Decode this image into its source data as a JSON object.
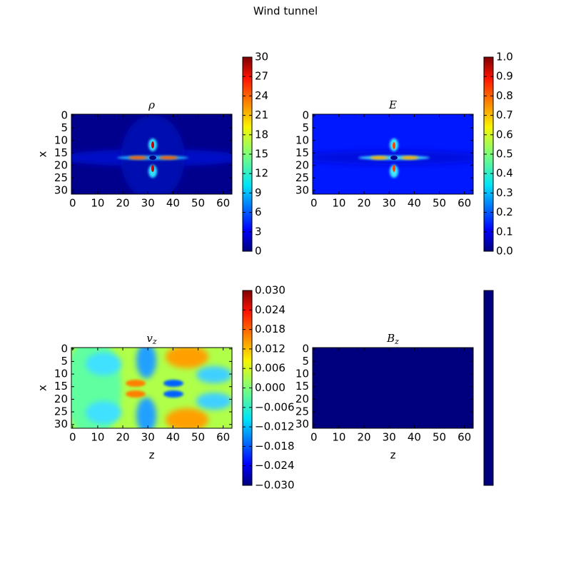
{
  "title": "Wind tunnel",
  "chart_data": [
    {
      "type": "heatmap",
      "title": "ρ",
      "xlim": [
        -0.5,
        63.5
      ],
      "ylim": [
        31.5,
        -0.5
      ],
      "xticks": [
        0,
        10,
        20,
        30,
        40,
        50,
        60
      ],
      "yticks": [
        0,
        5,
        10,
        15,
        20,
        25,
        30
      ],
      "ylabel": "x",
      "colormap": "jet",
      "clim": [
        0,
        30
      ],
      "cticks": [
        0,
        3,
        6,
        9,
        12,
        15,
        18,
        21,
        24,
        27,
        30
      ]
    },
    {
      "type": "heatmap",
      "title": "E",
      "xlim": [
        -0.5,
        63.5
      ],
      "ylim": [
        31.5,
        -0.5
      ],
      "xticks": [
        0,
        10,
        20,
        30,
        40,
        50,
        60
      ],
      "yticks": [
        0,
        5,
        10,
        15,
        20,
        25,
        30
      ],
      "colormap": "jet",
      "clim": [
        0,
        1
      ],
      "cticks": [
        {
          "value": 0,
          "label": "0.0"
        },
        0.1,
        0.2,
        0.3,
        0.4,
        0.5,
        0.6,
        0.7,
        0.8,
        0.9,
        {
          "value": 1,
          "label": "1.0"
        }
      ]
    },
    {
      "type": "heatmap",
      "title": "v",
      "title_subscript": "z",
      "xlim": [
        -0.5,
        63.5
      ],
      "ylim": [
        31.5,
        -0.5
      ],
      "xticks": [
        0,
        10,
        20,
        30,
        40,
        50,
        60
      ],
      "yticks": [
        0,
        5,
        10,
        15,
        20,
        25,
        30
      ],
      "xlabel": "z",
      "ylabel": "x",
      "colormap": "jet",
      "clim": [
        -0.03,
        0.03
      ],
      "cticks": [
        {
          "value": -0.03,
          "label": "−0.030"
        },
        {
          "value": -0.024,
          "label": "−0.024"
        },
        {
          "value": -0.018,
          "label": "−0.018"
        },
        {
          "value": -0.012,
          "label": "−0.012"
        },
        {
          "value": -0.006,
          "label": "−0.006"
        },
        {
          "value": 0,
          "label": "0.000"
        },
        {
          "value": 0.006,
          "label": "0.006"
        },
        {
          "value": 0.012,
          "label": "0.012"
        },
        {
          "value": 0.018,
          "label": "0.018"
        },
        {
          "value": 0.024,
          "label": "0.024"
        },
        {
          "value": 0.03,
          "label": "0.030"
        }
      ]
    },
    {
      "type": "heatmap",
      "title": "B",
      "title_subscript": "z",
      "xlim": [
        -0.5,
        63.5
      ],
      "ylim": [
        31.5,
        -0.5
      ],
      "xticks": [
        0,
        10,
        20,
        30,
        40,
        50,
        60
      ],
      "yticks": [
        0,
        5,
        10,
        15,
        20,
        25,
        30
      ],
      "xlabel": "z",
      "colormap": "jet",
      "colorbar_color": "#00007f"
    }
  ]
}
